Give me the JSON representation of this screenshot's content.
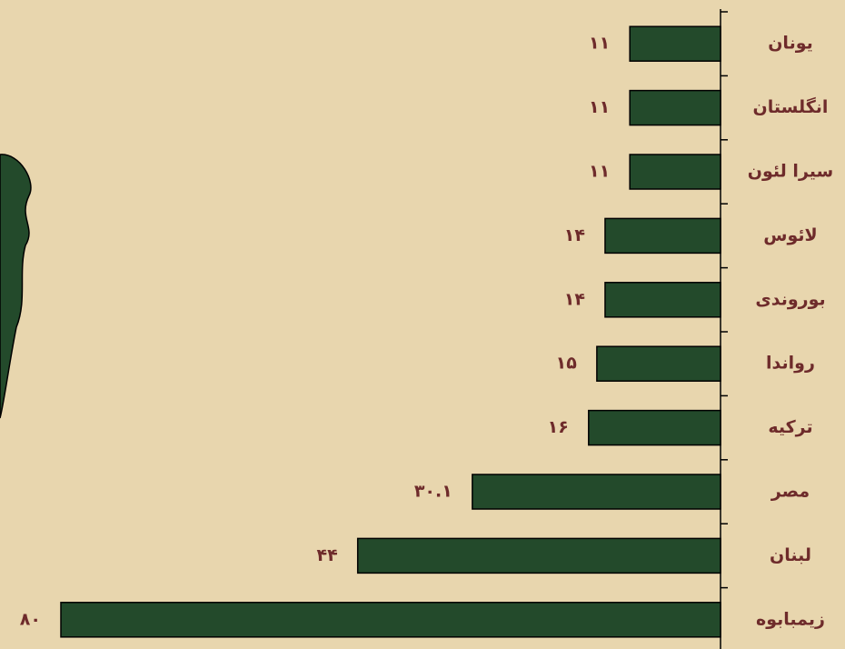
{
  "chart_data": {
    "type": "barh",
    "categories": [
      "یونان",
      "انگلستان",
      "سیرا لئون",
      "لائوس",
      "بوروندی",
      "رواندا",
      "ترکیه",
      "مصر",
      "لبنان",
      "زیمبابوه"
    ],
    "values": [
      11,
      11,
      11,
      14,
      14,
      15,
      16,
      30.1,
      44,
      80
    ],
    "value_labels": [
      "۱۱",
      "۱۱",
      "۱۱",
      "۱۴",
      "۱۴",
      "۱۵",
      "۱۶",
      "۳۰.۱",
      "۴۴",
      "۸۰"
    ],
    "color": "#234a2b",
    "xlim": [
      0,
      80
    ]
  }
}
